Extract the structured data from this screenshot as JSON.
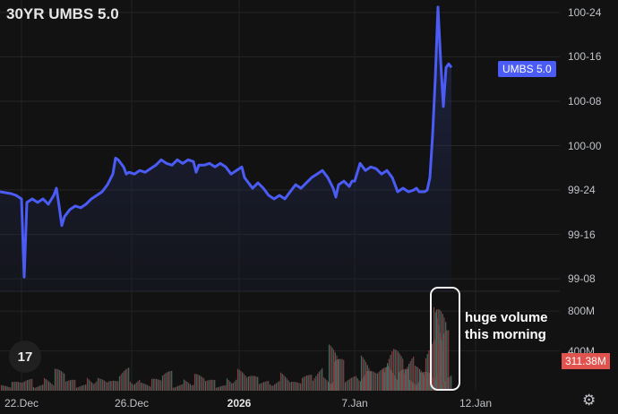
{
  "chart_data": {
    "type": "line",
    "title": "30YR UMBS 5.0",
    "price_axis": {
      "ticks": [
        "100-24",
        "100-16",
        "100-08",
        "100-00",
        "99-24",
        "99-16",
        "99-08"
      ],
      "tick_values": [
        100.75,
        100.5,
        100.25,
        100.0,
        99.75,
        99.5,
        99.25
      ],
      "ylim": [
        99.18,
        100.82
      ]
    },
    "volume_axis": {
      "ticks": [
        "800M",
        "400M"
      ],
      "tick_values": [
        800,
        400
      ],
      "ylim": [
        0,
        1000
      ],
      "unit": "M"
    },
    "x_ticks": [
      {
        "label": "22.Dec",
        "t": 0.04
      },
      {
        "label": "26.Dec",
        "t": 0.245
      },
      {
        "label": "2026",
        "t": 0.445,
        "bold": true
      },
      {
        "label": "7.Jan",
        "t": 0.66
      },
      {
        "label": "12.Jan",
        "t": 0.885
      }
    ],
    "series": [
      {
        "values": [
          [
            0.0,
            99.74
          ],
          [
            0.02,
            99.73
          ],
          [
            0.03,
            99.72
          ],
          [
            0.04,
            99.7
          ],
          [
            0.045,
            99.26
          ],
          [
            0.05,
            99.68
          ],
          [
            0.06,
            99.7
          ],
          [
            0.07,
            99.68
          ],
          [
            0.08,
            99.7
          ],
          [
            0.09,
            99.67
          ],
          [
            0.1,
            99.72
          ],
          [
            0.105,
            99.76
          ],
          [
            0.11,
            99.66
          ],
          [
            0.115,
            99.55
          ],
          [
            0.12,
            99.6
          ],
          [
            0.13,
            99.64
          ],
          [
            0.14,
            99.66
          ],
          [
            0.15,
            99.65
          ],
          [
            0.16,
            99.67
          ],
          [
            0.17,
            99.7
          ],
          [
            0.18,
            99.72
          ],
          [
            0.19,
            99.74
          ],
          [
            0.2,
            99.78
          ],
          [
            0.21,
            99.84
          ],
          [
            0.215,
            99.93
          ],
          [
            0.22,
            99.92
          ],
          [
            0.23,
            99.88
          ],
          [
            0.235,
            99.84
          ],
          [
            0.24,
            99.85
          ],
          [
            0.25,
            99.84
          ],
          [
            0.26,
            99.86
          ],
          [
            0.27,
            99.85
          ],
          [
            0.28,
            99.87
          ],
          [
            0.29,
            99.89
          ],
          [
            0.3,
            99.92
          ],
          [
            0.31,
            99.9
          ],
          [
            0.32,
            99.89
          ],
          [
            0.33,
            99.92
          ],
          [
            0.34,
            99.9
          ],
          [
            0.35,
            99.92
          ],
          [
            0.36,
            99.91
          ],
          [
            0.365,
            99.85
          ],
          [
            0.37,
            99.89
          ],
          [
            0.38,
            99.89
          ],
          [
            0.39,
            99.9
          ],
          [
            0.4,
            99.88
          ],
          [
            0.41,
            99.9
          ],
          [
            0.42,
            99.88
          ],
          [
            0.43,
            99.84
          ],
          [
            0.44,
            99.86
          ],
          [
            0.45,
            99.88
          ],
          [
            0.455,
            99.82
          ],
          [
            0.46,
            99.8
          ],
          [
            0.47,
            99.76
          ],
          [
            0.48,
            99.79
          ],
          [
            0.49,
            99.76
          ],
          [
            0.5,
            99.72
          ],
          [
            0.51,
            99.7
          ],
          [
            0.52,
            99.72
          ],
          [
            0.53,
            99.7
          ],
          [
            0.54,
            99.74
          ],
          [
            0.55,
            99.78
          ],
          [
            0.56,
            99.76
          ],
          [
            0.57,
            99.79
          ],
          [
            0.58,
            99.82
          ],
          [
            0.59,
            99.84
          ],
          [
            0.6,
            99.86
          ],
          [
            0.61,
            99.82
          ],
          [
            0.62,
            99.76
          ],
          [
            0.625,
            99.71
          ],
          [
            0.63,
            99.78
          ],
          [
            0.64,
            99.8
          ],
          [
            0.65,
            99.77
          ],
          [
            0.655,
            99.8
          ],
          [
            0.66,
            99.8
          ],
          [
            0.67,
            99.9
          ],
          [
            0.68,
            99.86
          ],
          [
            0.69,
            99.88
          ],
          [
            0.7,
            99.87
          ],
          [
            0.71,
            99.84
          ],
          [
            0.72,
            99.86
          ],
          [
            0.73,
            99.82
          ],
          [
            0.74,
            99.74
          ],
          [
            0.75,
            99.76
          ],
          [
            0.76,
            99.74
          ],
          [
            0.77,
            99.75
          ],
          [
            0.775,
            99.76
          ],
          [
            0.78,
            99.74
          ],
          [
            0.79,
            99.74
          ],
          [
            0.795,
            99.75
          ],
          [
            0.8,
            99.82
          ],
          [
            0.805,
            100.06
          ],
          [
            0.81,
            100.38
          ],
          [
            0.815,
            100.78
          ],
          [
            0.82,
            100.48
          ],
          [
            0.825,
            100.22
          ],
          [
            0.83,
            100.44
          ],
          [
            0.835,
            100.46
          ],
          [
            0.84,
            100.44
          ]
        ]
      }
    ],
    "volume": [
      [
        0.01,
        60
      ],
      [
        0.03,
        90
      ],
      [
        0.05,
        120
      ],
      [
        0.07,
        80
      ],
      [
        0.09,
        150
      ],
      [
        0.11,
        220
      ],
      [
        0.13,
        110
      ],
      [
        0.15,
        70
      ],
      [
        0.17,
        180
      ],
      [
        0.19,
        130
      ],
      [
        0.21,
        100
      ],
      [
        0.23,
        240
      ],
      [
        0.25,
        160
      ],
      [
        0.27,
        90
      ],
      [
        0.29,
        120
      ],
      [
        0.31,
        200
      ],
      [
        0.33,
        80
      ],
      [
        0.35,
        140
      ],
      [
        0.37,
        170
      ],
      [
        0.39,
        110
      ],
      [
        0.41,
        60
      ],
      [
        0.43,
        190
      ],
      [
        0.45,
        230
      ],
      [
        0.47,
        150
      ],
      [
        0.49,
        100
      ],
      [
        0.51,
        130
      ],
      [
        0.53,
        210
      ],
      [
        0.55,
        90
      ],
      [
        0.57,
        160
      ],
      [
        0.59,
        260
      ],
      [
        0.61,
        180
      ],
      [
        0.62,
        470
      ],
      [
        0.63,
        320
      ],
      [
        0.65,
        150
      ],
      [
        0.67,
        250
      ],
      [
        0.68,
        380
      ],
      [
        0.69,
        200
      ],
      [
        0.71,
        240
      ],
      [
        0.72,
        500
      ],
      [
        0.73,
        300
      ],
      [
        0.74,
        420
      ],
      [
        0.75,
        220
      ],
      [
        0.76,
        380
      ],
      [
        0.77,
        160
      ],
      [
        0.78,
        260
      ],
      [
        0.79,
        190
      ],
      [
        0.8,
        520
      ],
      [
        0.81,
        300
      ],
      [
        0.815,
        940
      ],
      [
        0.82,
        820
      ],
      [
        0.825,
        610
      ],
      [
        0.83,
        180
      ]
    ],
    "legend_tag": "UMBS 5.0",
    "current_volume": "311.38M",
    "annotation": "huge volume\nthis morning"
  },
  "colors": {
    "line": "#4a5cf5",
    "volume_up": "#3c6e66",
    "volume_down": "#8a3a3c",
    "highlight": "#f2f2f2"
  },
  "icons": {
    "logo": "tradingview-logo-icon",
    "settings": "gear-icon"
  },
  "logo_text": "17"
}
